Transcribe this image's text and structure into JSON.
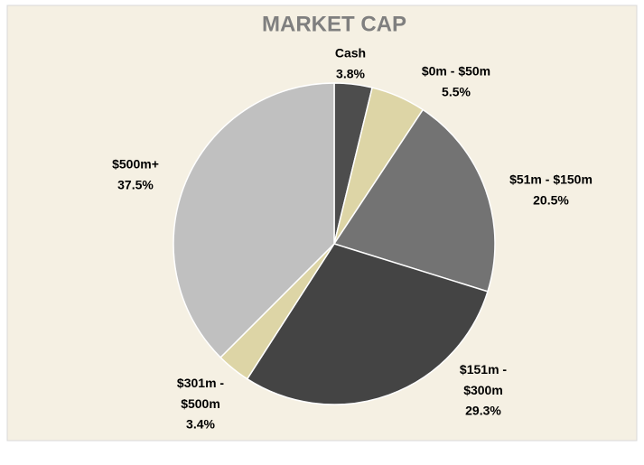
{
  "chart_data": {
    "type": "pie",
    "title": "MARKET CAP",
    "categories": [
      "Cash",
      "$0m - $50m",
      "$51m - $150m",
      "$151m - $300m",
      "$301m - $500m",
      "$500m+"
    ],
    "values": [
      3.8,
      5.5,
      20.5,
      29.3,
      3.4,
      37.5
    ],
    "value_labels": [
      "3.8%",
      "5.5%",
      "20.5%",
      "29.3%",
      "3.4%",
      "37.5%"
    ],
    "colors": [
      "#4d4d4d",
      "#ddd5a6",
      "#737373",
      "#444444",
      "#ddd5a6",
      "#c0c0c0"
    ]
  }
}
